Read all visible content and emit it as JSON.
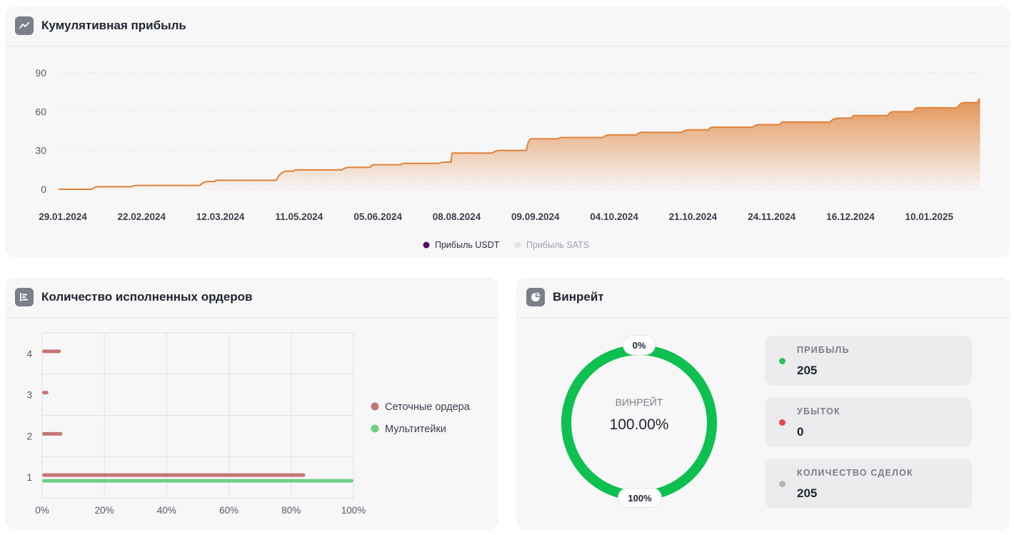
{
  "cumulative": {
    "title": "Кумулятивная прибыль",
    "icon": "line-chart-icon",
    "legend": [
      {
        "label": "Прибыль USDT",
        "color": "#5a0a6b"
      },
      {
        "label": "Прибыль SATS",
        "color": "#e2e2e4"
      }
    ]
  },
  "orders": {
    "title": "Количество исполненных ордеров",
    "icon": "bar-chart-icon",
    "legend": [
      {
        "label": "Сеточные ордера",
        "color": "#c47573"
      },
      {
        "label": "Мультитейки",
        "color": "#6fcf86"
      }
    ]
  },
  "winrate": {
    "title": "Винрейт",
    "icon": "pie-chart-icon",
    "center_label": "ВИНРЕЙТ",
    "center_value": "100.00%",
    "top_pill": "0%",
    "bottom_pill": "100%",
    "ring_color": "#0dc050",
    "stats": [
      {
        "label": "ПРИБЫЛЬ",
        "value": "205",
        "color": "#27c25a"
      },
      {
        "label": "УБЫТОК",
        "value": "0",
        "color": "#e5484d"
      },
      {
        "label": "КОЛИЧЕСТВО СДЕЛОК",
        "value": "205",
        "color": "#b5b5b8"
      }
    ]
  },
  "chart_data": [
    {
      "type": "area",
      "title": "Кумулятивная прибыль",
      "xlabel": "",
      "ylabel": "",
      "ylim": [
        0,
        90
      ],
      "yticks": [
        0,
        30,
        60,
        90
      ],
      "xtick_labels": [
        "29.01.2024",
        "22.02.2024",
        "12.03.2024",
        "11.05.2024",
        "05.06.2024",
        "08.08.2024",
        "09.09.2024",
        "04.10.2024",
        "21.10.2024",
        "24.11.2024",
        "16.12.2024",
        "10.01.2025"
      ],
      "grid": true,
      "legend_position": "bottom",
      "color": "#e0823a",
      "series": [
        {
          "name": "Прибыль USDT",
          "x": [
            0,
            0.5,
            1,
            1.2,
            1.9,
            2,
            2.9,
            3,
            3.7,
            4,
            4.4,
            4.9,
            5,
            5.6,
            6,
            6.4,
            7,
            7.4,
            8,
            8.3,
            8.9,
            9.2,
            9.9,
            10.1,
            10.6,
            10.9,
            11.5,
            11.7
          ],
          "values": [
            0,
            2,
            3,
            3,
            6,
            7,
            14,
            15,
            17,
            19,
            20,
            21,
            28,
            30,
            39,
            40,
            42,
            44,
            46,
            48,
            50,
            52,
            55,
            57,
            60,
            63,
            67,
            70
          ]
        },
        {
          "name": "Прибыль SATS",
          "x": [],
          "values": []
        }
      ]
    },
    {
      "type": "bar",
      "orientation": "horizontal",
      "title": "Количество исполненных ордеров",
      "categories": [
        "1",
        "2",
        "3",
        "4"
      ],
      "xlim": [
        0,
        100
      ],
      "xtick_labels": [
        "0%",
        "20%",
        "40%",
        "60%",
        "80%",
        "100%"
      ],
      "grid": true,
      "legend_position": "right",
      "series": [
        {
          "name": "Сеточные ордера",
          "color": "#c47573",
          "values": [
            84.5,
            6.5,
            2,
            6
          ]
        },
        {
          "name": "Мультитейки",
          "color": "#6fcf86",
          "values": [
            100,
            0,
            0,
            0
          ]
        }
      ]
    },
    {
      "type": "pie",
      "title": "Винрейт",
      "labels": [
        "Прибыль",
        "Убыток"
      ],
      "values": [
        100,
        0
      ],
      "colors": [
        "#0dc050",
        "#e5484d"
      ]
    }
  ]
}
